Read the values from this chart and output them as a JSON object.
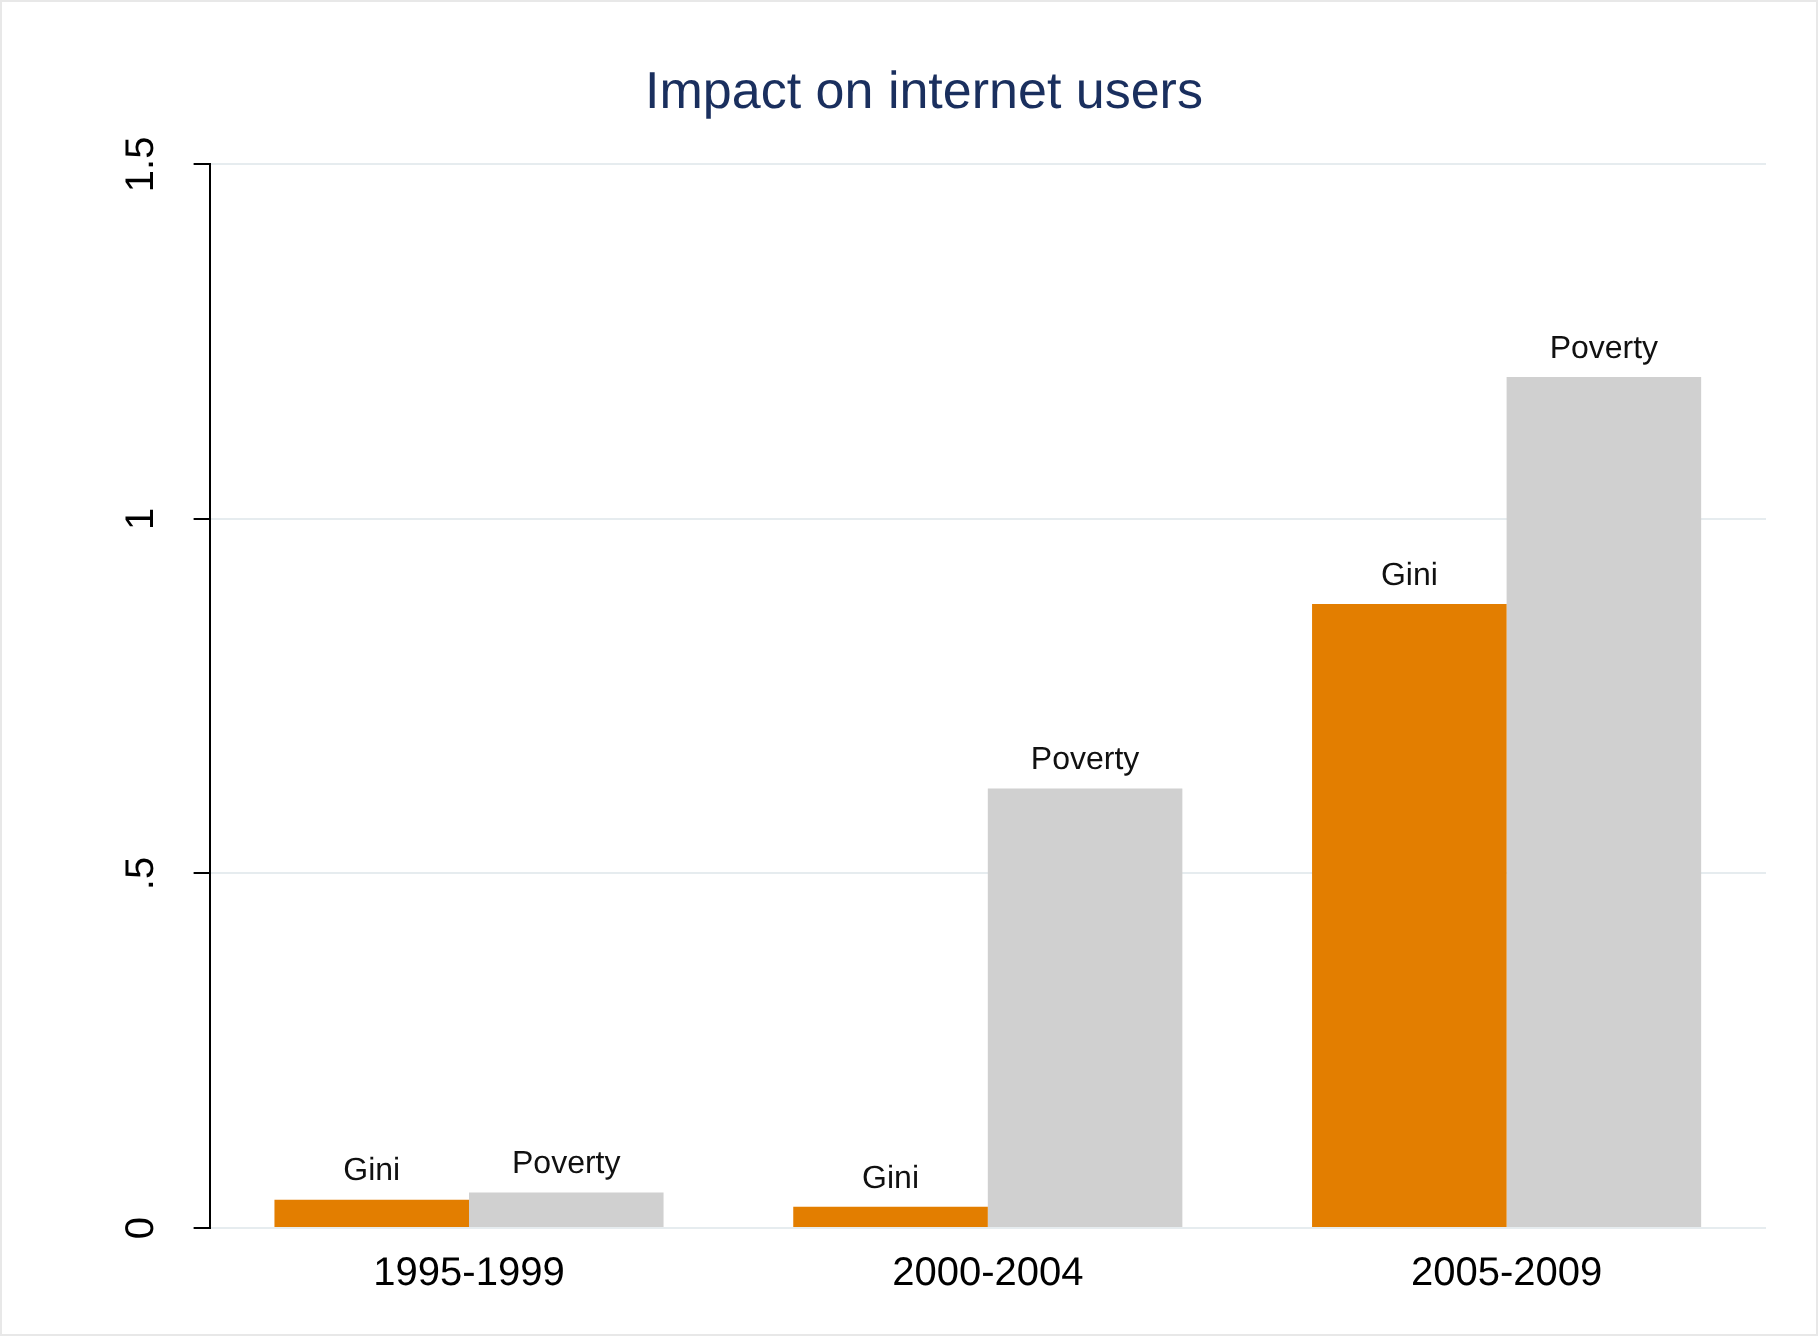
{
  "chart_data": {
    "type": "bar",
    "title": "Impact on internet users",
    "categories": [
      "1995-1999",
      "2000-2004",
      "2005-2009"
    ],
    "series": [
      {
        "name": "Gini",
        "color": "#e37e00",
        "values": [
          0.04,
          0.03,
          0.88
        ]
      },
      {
        "name": "Poverty",
        "color": "#d0d0d0",
        "values": [
          0.05,
          0.62,
          1.2
        ]
      }
    ],
    "ylim": [
      0,
      1.5
    ],
    "yticks": [
      0,
      {
        "value": 0.5,
        "label": ".5"
      },
      1,
      1.5
    ],
    "grid": "y",
    "legend": false
  }
}
